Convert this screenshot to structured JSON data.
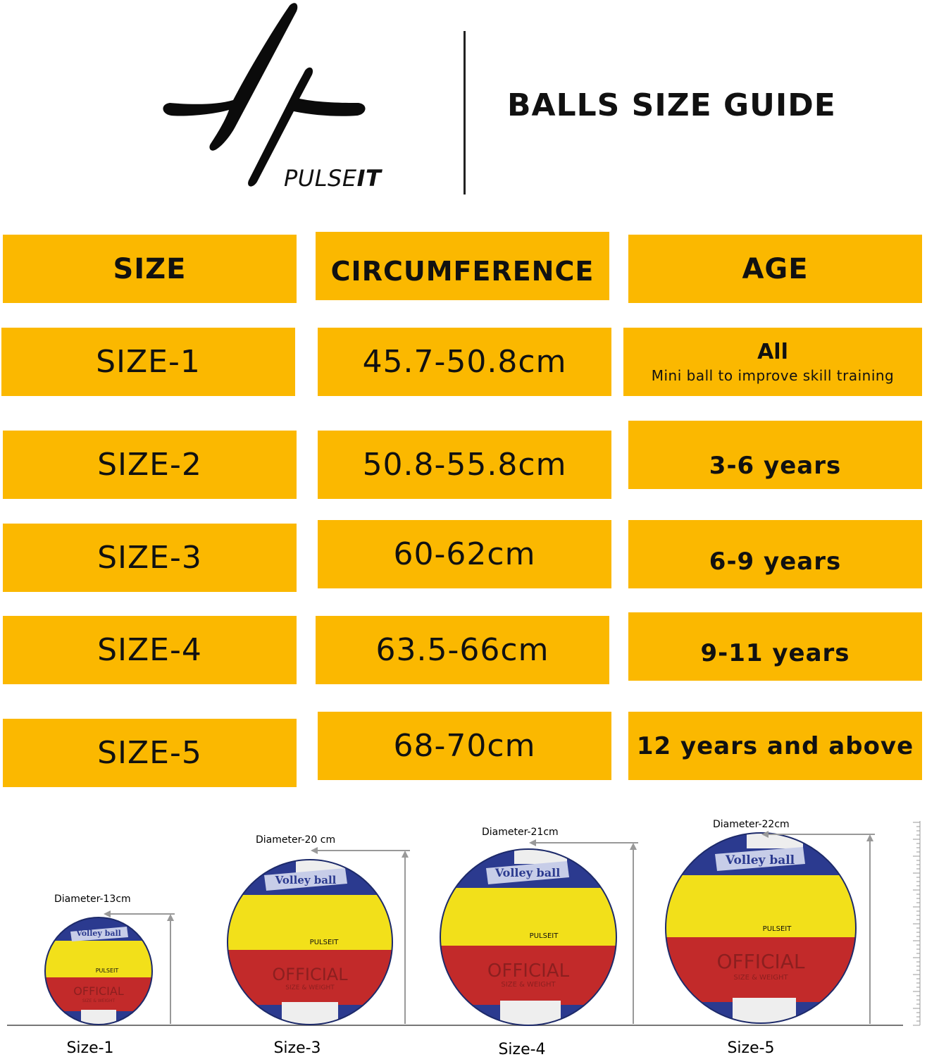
{
  "header": {
    "brand_prefix": "PULSE",
    "brand_suffix": "IT",
    "title": "BALLS SIZE GUIDE"
  },
  "table": {
    "columns": [
      "SIZE",
      "CIRCUMFERENCE",
      "AGE"
    ],
    "rows": [
      {
        "size": "SIZE-1",
        "circumference": "45.7-50.8cm",
        "age": "All",
        "age_note": "Mini ball to improve skill training"
      },
      {
        "size": "SIZE-2",
        "circumference": "50.8-55.8cm",
        "age": "3-6 years"
      },
      {
        "size": "SIZE-3",
        "circumference": "60-62cm",
        "age": "6-9 years"
      },
      {
        "size": "SIZE-4",
        "circumference": "63.5-66cm",
        "age": "9-11 years"
      },
      {
        "size": "SIZE-5",
        "circumference": "68-70cm",
        "age": "12 years and above"
      }
    ]
  },
  "balls": [
    {
      "label": "Size-1",
      "diameter": "Diameter-13cm",
      "print_brand": "PULSEIT",
      "print_panel": "Volley ball",
      "print_official": "OFFICIAL",
      "print_sub": "SIZE & WEIGHT"
    },
    {
      "label": "Size-3",
      "diameter": "Diameter-20 cm",
      "print_brand": "PULSEIT",
      "print_panel": "Volley ball",
      "print_official": "OFFICIAL",
      "print_sub": "SIZE & WEIGHT"
    },
    {
      "label": "Size-4",
      "diameter": "Diameter-21cm",
      "print_brand": "PULSEIT",
      "print_panel": "Volley ball",
      "print_official": "OFFICIAL",
      "print_sub": "SIZE & WEIGHT"
    },
    {
      "label": "Size-5",
      "diameter": "Diameter-22cm",
      "print_brand": "PULSEIT",
      "print_panel": "Volley ball",
      "print_official": "OFFICIAL",
      "print_sub": "SIZE & WEIGHT"
    }
  ],
  "colors": {
    "accent": "#fbb800",
    "ball_blue": "#2b3a8f",
    "ball_yellow": "#f2e01a",
    "ball_red": "#c22a2a",
    "ball_white": "#eeeeee"
  }
}
